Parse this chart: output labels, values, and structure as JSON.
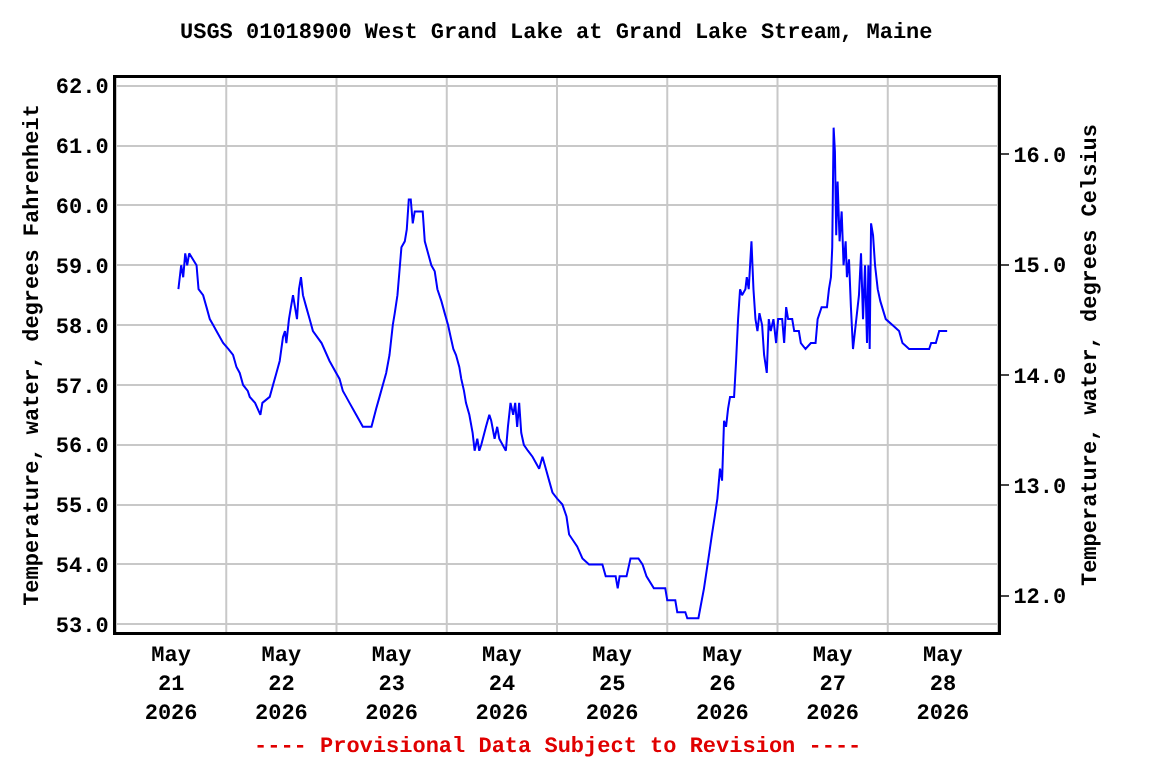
{
  "chart_data": {
    "type": "line",
    "title": "USGS 01018900 West Grand Lake at Grand Lake Stream, Maine",
    "ylabel": "Temperature, water, degrees Fahrenheit",
    "y2label": "Temperature, water, degrees Celsius",
    "annotations": [
      "---- Provisional Data Subject to Revision ----"
    ],
    "grid": true,
    "marker": "none",
    "line_style": "solid",
    "xlim": [
      "2026-05-21",
      "2026-05-29"
    ],
    "xticks": [
      {
        "value": "2026-05-21",
        "label": null
      },
      {
        "value": "2026-05-21T12:00",
        "label": "May\n21\n2026"
      },
      {
        "value": "2026-05-22",
        "label": null
      },
      {
        "value": "2026-05-22T12:00",
        "label": "May\n22\n2026"
      },
      {
        "value": "2026-05-23",
        "label": null
      },
      {
        "value": "2026-05-23T12:00",
        "label": "May\n23\n2026"
      },
      {
        "value": "2026-05-24",
        "label": null
      },
      {
        "value": "2026-05-24T12:00",
        "label": "May\n24\n2026"
      },
      {
        "value": "2026-05-25",
        "label": null
      },
      {
        "value": "2026-05-25T12:00",
        "label": "May\n25\n2026"
      },
      {
        "value": "2026-05-26",
        "label": null
      },
      {
        "value": "2026-05-26T12:00",
        "label": "May\n26\n2026"
      },
      {
        "value": "2026-05-27",
        "label": null
      },
      {
        "value": "2026-05-27T12:00",
        "label": "May\n27\n2026"
      },
      {
        "value": "2026-05-28",
        "label": null
      },
      {
        "value": "2026-05-28T12:00",
        "label": "May\n28\n2026"
      },
      {
        "value": "2026-05-29",
        "label": null
      }
    ],
    "ylim": [
      52.87,
      62.13
    ],
    "yticks": [
      {
        "value": 53,
        "label": "53.0"
      },
      {
        "value": 54,
        "label": "54.0"
      },
      {
        "value": 55,
        "label": "55.0"
      },
      {
        "value": 56,
        "label": "56.0"
      },
      {
        "value": 57,
        "label": "57.0"
      },
      {
        "value": 58,
        "label": "58.0"
      },
      {
        "value": 59,
        "label": "59.0"
      },
      {
        "value": 60,
        "label": "60.0"
      },
      {
        "value": 61,
        "label": "61.0"
      },
      {
        "value": 62,
        "label": "62.0"
      }
    ],
    "y2lim": [
      11.67,
      16.69
    ],
    "y2ticks": [
      {
        "value": 12,
        "label": "12.0"
      },
      {
        "value": 13,
        "label": "13.0"
      },
      {
        "value": 14,
        "label": "14.0"
      },
      {
        "value": 15,
        "label": "15.0"
      },
      {
        "value": 16,
        "label": "16.0"
      }
    ],
    "x": [
      "2026-05-21T13:35",
      "2026-05-21T14:11",
      "2026-05-21T14:38",
      "2026-05-21T15:04",
      "2026-05-21T15:30",
      "2026-05-21T15:56",
      "2026-05-21T17:32",
      "2026-05-21T17:58",
      "2026-05-21T18:58",
      "2026-05-21T19:42",
      "2026-05-21T20:25",
      "2026-05-21T21:09",
      "2026-05-21T21:52",
      "2026-05-21T23:19",
      "2026-05-22T00:29",
      "2026-05-22T01:29",
      "2026-05-22T02:13",
      "2026-05-22T02:56",
      "2026-05-22T03:40",
      "2026-05-22T04:41",
      "2026-05-22T05:07",
      "2026-05-22T06:16",
      "2026-05-22T07:26",
      "2026-05-22T07:52",
      "2026-05-22T09:28",
      "2026-05-22T10:11",
      "2026-05-22T10:55",
      "2026-05-22T11:38",
      "2026-05-22T12:21",
      "2026-05-22T12:47",
      "2026-05-22T13:05",
      "2026-05-22T13:39",
      "2026-05-22T14:05",
      "2026-05-22T14:32",
      "2026-05-22T14:58",
      "2026-05-22T15:24",
      "2026-05-22T15:50",
      "2026-05-22T16:16",
      "2026-05-22T16:42",
      "2026-05-22T17:25",
      "2026-05-22T18:09",
      "2026-05-22T18:52",
      "2026-05-22T20:45",
      "2026-05-22T22:29",
      "2026-05-22T23:56",
      "2026-05-23T00:40",
      "2026-05-23T01:23",
      "2026-05-23T02:07",
      "2026-05-23T02:50",
      "2026-05-23T04:17",
      "2026-05-23T05:01",
      "2026-05-23T05:44",
      "2026-05-23T07:37",
      "2026-05-23T08:38",
      "2026-05-23T09:22",
      "2026-05-23T10:05",
      "2026-05-23T10:49",
      "2026-05-23T11:32",
      "2026-05-23T12:15",
      "2026-05-23T12:41",
      "2026-05-23T13:16",
      "2026-05-23T13:42",
      "2026-05-23T14:08",
      "2026-05-23T14:52",
      "2026-05-23T15:18",
      "2026-05-23T15:44",
      "2026-05-23T16:10",
      "2026-05-23T16:36",
      "2026-05-23T17:02",
      "2026-05-23T18:46",
      "2026-05-23T19:13",
      "2026-05-23T19:56",
      "2026-05-23T20:39",
      "2026-05-23T21:23",
      "2026-05-23T21:58",
      "2026-05-23T22:50",
      "2026-05-23T23:33",
      "2026-05-24T00:17",
      "2026-05-24T00:51",
      "2026-05-24T01:26",
      "2026-05-24T02:01",
      "2026-05-24T02:44",
      "2026-05-24T03:10",
      "2026-05-24T03:45",
      "2026-05-24T04:11",
      "2026-05-24T04:55",
      "2026-05-24T05:38",
      "2026-05-24T06:04",
      "2026-05-24T06:39",
      "2026-05-24T07:05",
      "2026-05-24T07:31",
      "2026-05-24T08:32",
      "2026-05-24T09:16",
      "2026-05-24T09:41",
      "2026-05-24T10:25",
      "2026-05-24T10:59",
      "2026-05-24T11:26",
      "2026-05-24T12:09",
      "2026-05-24T12:52",
      "2026-05-24T13:19",
      "2026-05-24T13:53",
      "2026-05-24T14:28",
      "2026-05-24T14:54",
      "2026-05-24T15:20",
      "2026-05-24T15:46",
      "2026-05-24T16:13",
      "2026-05-24T16:47",
      "2026-05-24T17:40",
      "2026-05-24T18:40",
      "2026-05-24T20:07",
      "2026-05-24T20:50",
      "2026-05-24T21:34",
      "2026-05-24T22:17",
      "2026-05-24T23:01",
      "2026-05-25T00:02",
      "2026-05-25T01:11",
      "2026-05-25T02:04",
      "2026-05-25T02:38",
      "2026-05-25T03:31",
      "2026-05-25T04:23",
      "2026-05-25T05:32",
      "2026-05-25T06:59",
      "2026-05-25T09:53",
      "2026-05-25T10:36",
      "2026-05-25T12:46",
      "2026-05-25T13:13",
      "2026-05-25T13:38",
      "2026-05-25T15:08",
      "2026-05-25T16:00",
      "2026-05-25T17:44",
      "2026-05-25T18:37",
      "2026-05-25T19:29",
      "2026-05-25T21:05",
      "2026-05-25T23:34",
      "2026-05-26T00:00",
      "2026-05-26T01:45",
      "2026-05-26T02:11",
      "2026-05-26T03:56",
      "2026-05-26T04:22",
      "2026-05-26T06:47",
      "2026-05-26T07:16",
      "2026-05-26T08:00",
      "2026-05-26T08:35",
      "2026-05-26T09:10",
      "2026-05-26T09:44",
      "2026-05-26T10:20",
      "2026-05-26T10:55",
      "2026-05-26T11:29",
      "2026-05-26T11:56",
      "2026-05-26T12:22",
      "2026-05-26T12:48",
      "2026-05-26T13:14",
      "2026-05-26T13:40",
      "2026-05-26T14:33",
      "2026-05-26T14:59",
      "2026-05-26T15:25",
      "2026-05-26T15:51",
      "2026-05-26T16:17",
      "2026-05-26T17:01",
      "2026-05-26T17:19",
      "2026-05-26T17:44",
      "2026-05-26T18:20",
      "2026-05-26T18:46",
      "2026-05-26T19:12",
      "2026-05-26T19:38",
      "2026-05-26T20:04",
      "2026-05-26T20:39",
      "2026-05-26T21:05",
      "2026-05-26T21:40",
      "2026-05-26T22:06",
      "2026-05-26T22:32",
      "2026-05-26T23:07",
      "2026-05-26T23:42",
      "2026-05-27T00:08",
      "2026-05-27T01:01",
      "2026-05-27T01:27",
      "2026-05-27T01:53",
      "2026-05-27T02:19",
      "2026-05-27T03:12",
      "2026-05-27T03:38",
      "2026-05-27T04:39",
      "2026-05-27T05:05",
      "2026-05-27T06:06",
      "2026-05-27T07:16",
      "2026-05-27T08:17",
      "2026-05-27T08:44",
      "2026-05-27T09:36",
      "2026-05-27T10:46",
      "2026-05-27T11:12",
      "2026-05-27T11:38",
      "2026-05-27T11:55",
      "2026-05-27T12:13",
      "2026-05-27T12:30",
      "2026-05-27T12:47",
      "2026-05-27T13:05",
      "2026-05-27T13:31",
      "2026-05-27T13:58",
      "2026-05-27T14:23",
      "2026-05-27T14:50",
      "2026-05-27T15:07",
      "2026-05-27T15:34",
      "2026-05-27T15:59",
      "2026-05-27T16:26",
      "2026-05-27T16:52",
      "2026-05-27T17:44",
      "2026-05-27T18:11",
      "2026-05-27T18:37",
      "2026-05-27T19:03",
      "2026-05-27T19:29",
      "2026-05-27T19:47",
      "2026-05-27T20:04",
      "2026-05-27T20:22",
      "2026-05-27T20:48",
      "2026-05-27T21:14",
      "2026-05-27T21:49",
      "2026-05-27T22:23",
      "2026-05-27T23:34",
      "2026-05-28T01:01",
      "2026-05-28T02:28",
      "2026-05-28T03:12",
      "2026-05-28T04:39",
      "2026-05-28T09:01",
      "2026-05-28T09:27",
      "2026-05-28T10:28",
      "2026-05-28T11:12",
      "2026-05-28T12:56"
    ],
    "series": [
      {
        "color": "#0000ff",
        "values": [
          58.6,
          59.0,
          58.8,
          59.2,
          59.0,
          59.2,
          59.0,
          58.6,
          58.5,
          58.3,
          58.1,
          58.0,
          57.9,
          57.7,
          57.6,
          57.5,
          57.3,
          57.2,
          57.0,
          56.9,
          56.8,
          56.7,
          56.5,
          56.7,
          56.8,
          57.0,
          57.2,
          57.4,
          57.8,
          57.9,
          57.7,
          58.1,
          58.3,
          58.5,
          58.3,
          58.1,
          58.6,
          58.8,
          58.5,
          58.3,
          58.1,
          57.9,
          57.7,
          57.4,
          57.2,
          57.1,
          56.9,
          56.8,
          56.7,
          56.5,
          56.4,
          56.3,
          56.3,
          56.6,
          56.8,
          57.0,
          57.2,
          57.5,
          58.0,
          58.2,
          58.5,
          58.9,
          59.3,
          59.4,
          59.6,
          60.1,
          60.1,
          59.7,
          59.9,
          59.9,
          59.4,
          59.2,
          59.0,
          58.9,
          58.6,
          58.4,
          58.2,
          58.0,
          57.8,
          57.6,
          57.5,
          57.3,
          57.1,
          56.9,
          56.7,
          56.5,
          56.2,
          55.9,
          56.1,
          55.9,
          56.0,
          56.3,
          56.5,
          56.4,
          56.1,
          56.3,
          56.1,
          56.0,
          55.9,
          56.3,
          56.7,
          56.5,
          56.7,
          56.3,
          56.7,
          56.2,
          56.0,
          55.9,
          55.8,
          55.6,
          55.8,
          55.6,
          55.4,
          55.2,
          55.1,
          55.0,
          54.8,
          54.5,
          54.4,
          54.3,
          54.1,
          54.0,
          54.0,
          53.8,
          53.8,
          53.6,
          53.8,
          53.8,
          54.1,
          54.1,
          54.0,
          53.8,
          53.6,
          53.6,
          53.4,
          53.4,
          53.2,
          53.2,
          53.1,
          53.1,
          53.3,
          53.6,
          53.9,
          54.2,
          54.5,
          54.8,
          55.1,
          55.6,
          55.4,
          56.4,
          56.3,
          56.6,
          56.8,
          56.8,
          57.4,
          58.1,
          58.6,
          58.5,
          58.6,
          58.8,
          58.6,
          59.4,
          58.6,
          58.1,
          57.9,
          58.2,
          58.0,
          57.5,
          57.2,
          58.1,
          57.9,
          58.1,
          57.7,
          58.1,
          58.1,
          57.7,
          58.3,
          58.1,
          58.1,
          57.9,
          57.9,
          57.7,
          57.6,
          57.7,
          57.7,
          58.1,
          58.3,
          58.3,
          58.6,
          58.8,
          59.3,
          61.3,
          60.9,
          59.5,
          60.4,
          59.4,
          59.9,
          59.0,
          59.4,
          58.8,
          59.1,
          58.3,
          57.6,
          57.9,
          58.5,
          59.2,
          58.1,
          59.0,
          57.7,
          59.0,
          57.6,
          59.7,
          59.5,
          59.0,
          58.6,
          58.4,
          58.1,
          58.0,
          57.9,
          57.7,
          57.6,
          57.6,
          57.7,
          57.7,
          57.9,
          57.9
        ]
      }
    ]
  }
}
